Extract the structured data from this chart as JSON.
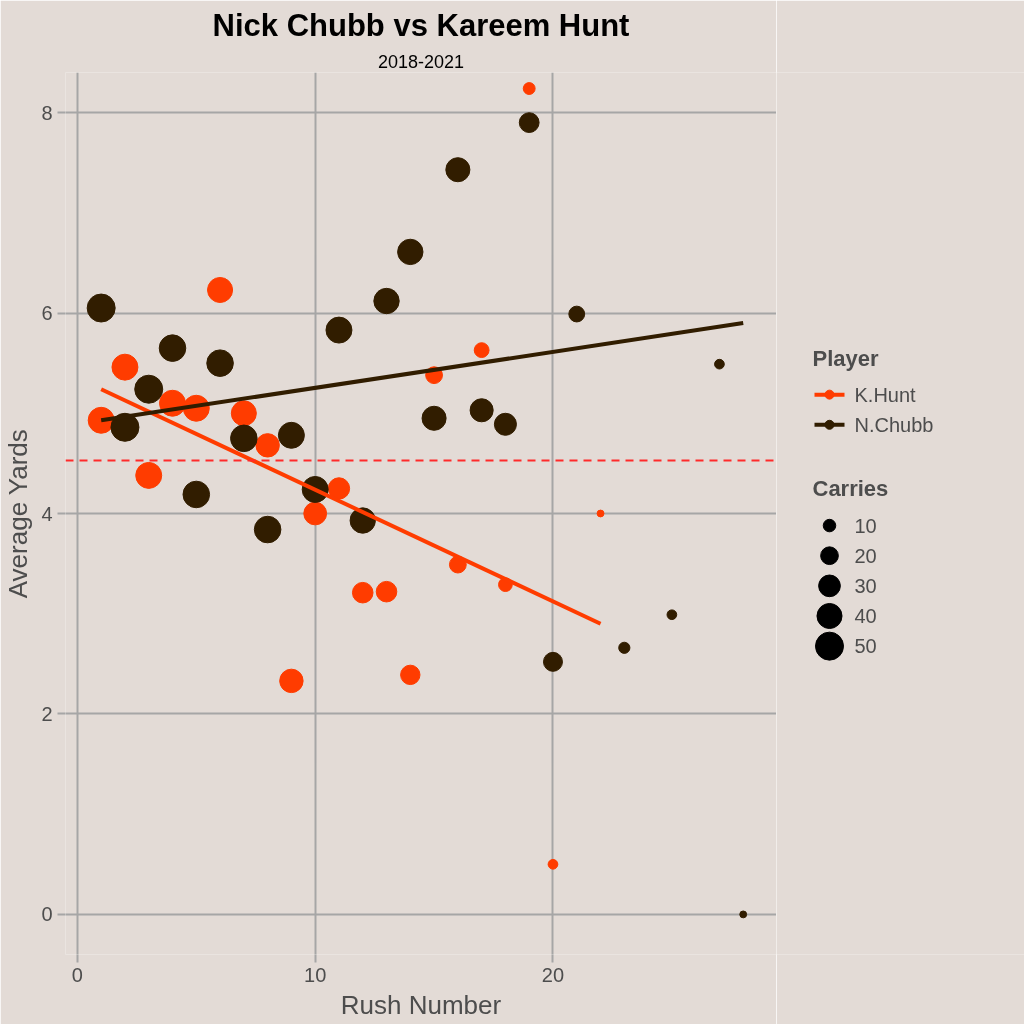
{
  "chart_data": {
    "type": "bubble",
    "title": "Nick Chubb vs Kareem Hunt",
    "subtitle": "2018-2021",
    "xlabel": "Rush Number",
    "ylabel": "Average Yards",
    "legend_title": "Player",
    "annotations": [
      "Carries"
    ],
    "xlim": [
      -0.5,
      29.4
    ],
    "ylim": [
      -0.4,
      8.4
    ],
    "xticks": [
      0,
      10,
      20
    ],
    "yticks": [
      0,
      2,
      4,
      6,
      8
    ],
    "grid": true,
    "legend": "right",
    "size_legend": [
      10,
      20,
      30,
      40,
      50
    ],
    "series": [
      {
        "name": "K.Hunt",
        "color": "#ff3c00",
        "x": [
          1,
          2,
          3,
          4,
          5,
          6,
          7,
          8,
          9,
          10,
          11,
          12,
          13,
          14,
          15,
          16,
          17,
          18,
          19,
          20,
          22
        ],
        "values": [
          4.93,
          5.46,
          4.38,
          5.1,
          5.05,
          6.23,
          5.0,
          4.68,
          2.33,
          4.0,
          4.25,
          3.21,
          3.22,
          2.39,
          5.38,
          3.49,
          5.63,
          3.29,
          8.24,
          0.5,
          4.0
        ],
        "sizes": [
          43,
          43,
          43,
          43,
          43,
          40,
          40,
          35,
          35,
          33,
          29,
          27,
          27,
          24,
          18,
          18,
          14,
          12,
          9,
          6,
          3
        ]
      },
      {
        "name": "N.Chubb",
        "color": "#311d00",
        "x": [
          1,
          2,
          3,
          4,
          5,
          6,
          7,
          8,
          9,
          10,
          11,
          12,
          13,
          14,
          15,
          16,
          17,
          18,
          19,
          20,
          21,
          23,
          25,
          27,
          28
        ],
        "values": [
          6.05,
          4.86,
          5.24,
          5.65,
          4.19,
          5.5,
          4.75,
          3.84,
          4.78,
          4.24,
          5.83,
          3.93,
          6.12,
          6.61,
          4.95,
          7.43,
          5.03,
          4.89,
          7.9,
          2.52,
          5.99,
          2.66,
          2.99,
          5.49,
          0.0
        ],
        "sizes": [
          50,
          50,
          50,
          45,
          45,
          45,
          45,
          45,
          43,
          43,
          43,
          41,
          41,
          41,
          37,
          37,
          34,
          31,
          25,
          23,
          16,
          8,
          6,
          6,
          3
        ]
      },
      {
        "type": "line",
        "color": "#ff3c00",
        "x": [
          1,
          22
        ],
        "values": [
          5.24,
          2.9
        ]
      },
      {
        "type": "line",
        "color": "#311d00",
        "x": [
          1,
          28
        ],
        "values": [
          4.93,
          5.9
        ]
      }
    ],
    "ref_lines": [
      {
        "axis": "y",
        "value": 4.53,
        "color": "#ff2a2a",
        "line_style": "dashed"
      }
    ]
  }
}
